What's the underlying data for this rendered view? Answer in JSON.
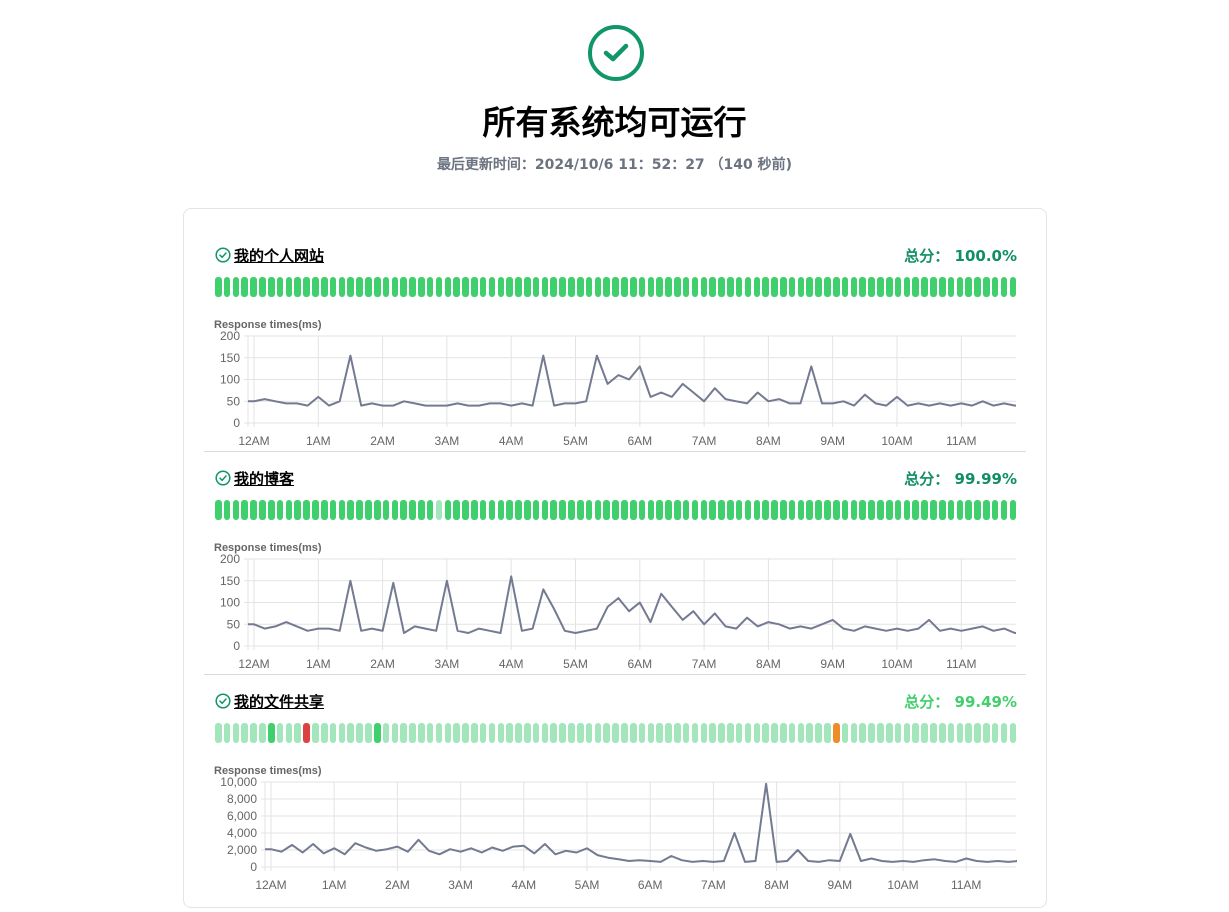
{
  "header": {
    "status_icon": "check-circle-icon",
    "title": "所有系统均可运行",
    "last_updated": "最后更新时间：2024/10/6 11：52：27 （140 秒前)"
  },
  "colors": {
    "accent": "#11956a",
    "up": "#3fcf6d",
    "up_light": "#a3e6bb",
    "down": "#dc4242",
    "degraded": "#ee8b2a",
    "line": "#737a91",
    "score_dark": "#0f8f63",
    "score_light": "#41cf6c"
  },
  "monitors": [
    {
      "name": "我的个人网站",
      "score": "总分：  100.0%",
      "score_tone": "dark",
      "chart_label": "Response times(ms)",
      "statuses": [
        "g",
        "g",
        "g",
        "g",
        "g",
        "g",
        "g",
        "g",
        "g",
        "g",
        "g",
        "g",
        "g",
        "g",
        "g",
        "g",
        "g",
        "g",
        "g",
        "g",
        "g",
        "g",
        "g",
        "g",
        "g",
        "g",
        "g",
        "g",
        "g",
        "g",
        "g",
        "g",
        "g",
        "g",
        "g",
        "g",
        "g",
        "g",
        "g",
        "g",
        "g",
        "g",
        "g",
        "g",
        "g",
        "g",
        "g",
        "g",
        "g",
        "g",
        "g",
        "g",
        "g",
        "g",
        "g",
        "g",
        "g",
        "g",
        "g",
        "g",
        "g",
        "g",
        "g",
        "g",
        "g",
        "g",
        "g",
        "g",
        "g",
        "g",
        "g",
        "g",
        "g",
        "g",
        "g",
        "g",
        "g",
        "g",
        "g",
        "g",
        "g",
        "g",
        "g",
        "g",
        "g",
        "g",
        "g",
        "g",
        "g",
        "g",
        "g"
      ]
    },
    {
      "name": "我的博客",
      "score": "总分：  99.99%",
      "score_tone": "dark",
      "chart_label": "Response times(ms)",
      "statuses": [
        "g",
        "g",
        "g",
        "g",
        "g",
        "g",
        "g",
        "g",
        "g",
        "g",
        "g",
        "g",
        "g",
        "g",
        "g",
        "g",
        "g",
        "g",
        "g",
        "g",
        "g",
        "g",
        "g",
        "g",
        "g",
        "l",
        "g",
        "g",
        "g",
        "g",
        "g",
        "g",
        "g",
        "g",
        "g",
        "g",
        "g",
        "g",
        "g",
        "g",
        "g",
        "g",
        "g",
        "g",
        "g",
        "g",
        "g",
        "g",
        "g",
        "g",
        "g",
        "g",
        "g",
        "g",
        "g",
        "g",
        "g",
        "g",
        "g",
        "g",
        "g",
        "g",
        "g",
        "g",
        "g",
        "g",
        "g",
        "g",
        "g",
        "g",
        "g",
        "g",
        "g",
        "g",
        "g",
        "g",
        "g",
        "g",
        "g",
        "g",
        "g",
        "g",
        "g",
        "g",
        "g",
        "g",
        "g",
        "g",
        "g",
        "g",
        "g"
      ]
    },
    {
      "name": "我的文件共享",
      "score": "总分：  99.49%",
      "score_tone": "light",
      "chart_label": "Response times(ms)",
      "statuses": [
        "l",
        "l",
        "l",
        "l",
        "l",
        "l",
        "g",
        "l",
        "l",
        "l",
        "r",
        "l",
        "l",
        "l",
        "l",
        "l",
        "l",
        "l",
        "g",
        "l",
        "l",
        "l",
        "l",
        "l",
        "l",
        "l",
        "l",
        "l",
        "l",
        "l",
        "l",
        "l",
        "l",
        "l",
        "l",
        "l",
        "l",
        "l",
        "l",
        "l",
        "l",
        "l",
        "l",
        "l",
        "l",
        "l",
        "l",
        "l",
        "l",
        "l",
        "l",
        "l",
        "l",
        "l",
        "l",
        "l",
        "l",
        "l",
        "l",
        "l",
        "l",
        "l",
        "l",
        "l",
        "l",
        "l",
        "l",
        "l",
        "l",
        "l",
        "o",
        "l",
        "l",
        "l",
        "l",
        "l",
        "l",
        "l",
        "l",
        "l",
        "l",
        "l",
        "l",
        "l",
        "l",
        "l",
        "l",
        "l",
        "l",
        "l",
        "l"
      ]
    }
  ],
  "chart_data": [
    {
      "type": "line",
      "ylabel": "Response times(ms)",
      "ylim": [
        0,
        200
      ],
      "yticks": [
        "0",
        "50",
        "100",
        "150",
        "200"
      ],
      "ytick_values": [
        0,
        50,
        100,
        150,
        200
      ],
      "xticks": [
        "12AM",
        "1AM",
        "2AM",
        "3AM",
        "4AM",
        "5AM",
        "6AM",
        "7AM",
        "8AM",
        "9AM",
        "10AM",
        "11AM"
      ],
      "grid": true,
      "x": [
        "0:00",
        "0:10",
        "0:20",
        "0:30",
        "0:40",
        "0:50",
        "1:00",
        "1:10",
        "1:20",
        "1:30",
        "1:40",
        "1:50",
        "2:00",
        "2:10",
        "2:20",
        "2:30",
        "2:40",
        "2:50",
        "3:00",
        "3:10",
        "3:20",
        "3:30",
        "3:40",
        "3:50",
        "4:00",
        "4:10",
        "4:20",
        "4:30",
        "4:40",
        "4:50",
        "5:00",
        "5:10",
        "5:20",
        "5:30",
        "5:40",
        "5:50",
        "6:00",
        "6:10",
        "6:20",
        "6:30",
        "6:40",
        "6:50",
        "7:00",
        "7:10",
        "7:20",
        "7:30",
        "7:40",
        "7:50",
        "8:00",
        "8:10",
        "8:20",
        "8:30",
        "8:40",
        "8:50",
        "9:00",
        "9:10",
        "9:20",
        "9:30",
        "9:40",
        "9:50",
        "10:00",
        "10:10",
        "10:20",
        "10:30",
        "10:40",
        "10:50",
        "11:00",
        "11:10",
        "11:20",
        "11:30",
        "11:40",
        "11:50"
      ],
      "values": [
        50,
        55,
        50,
        45,
        45,
        40,
        60,
        40,
        50,
        155,
        40,
        45,
        40,
        40,
        50,
        45,
        40,
        40,
        40,
        45,
        40,
        40,
        45,
        45,
        40,
        45,
        40,
        155,
        40,
        45,
        45,
        50,
        155,
        90,
        110,
        100,
        130,
        60,
        70,
        60,
        90,
        70,
        50,
        80,
        55,
        50,
        45,
        70,
        50,
        55,
        45,
        45,
        130,
        45,
        45,
        50,
        40,
        65,
        45,
        40,
        60,
        40,
        45,
        40,
        45,
        40,
        45,
        40,
        50,
        40,
        45,
        40
      ]
    },
    {
      "type": "line",
      "ylabel": "Response times(ms)",
      "ylim": [
        0,
        200
      ],
      "yticks": [
        "0",
        "50",
        "100",
        "150",
        "200"
      ],
      "ytick_values": [
        0,
        50,
        100,
        150,
        200
      ],
      "xticks": [
        "12AM",
        "1AM",
        "2AM",
        "3AM",
        "4AM",
        "5AM",
        "6AM",
        "7AM",
        "8AM",
        "9AM",
        "10AM",
        "11AM"
      ],
      "grid": true,
      "x": [
        "0:00",
        "0:10",
        "0:20",
        "0:30",
        "0:40",
        "0:50",
        "1:00",
        "1:10",
        "1:20",
        "1:30",
        "1:40",
        "1:50",
        "2:00",
        "2:10",
        "2:20",
        "2:30",
        "2:40",
        "2:50",
        "3:00",
        "3:10",
        "3:20",
        "3:30",
        "3:40",
        "3:50",
        "4:00",
        "4:10",
        "4:20",
        "4:30",
        "4:40",
        "4:50",
        "5:00",
        "5:10",
        "5:20",
        "5:30",
        "5:40",
        "5:50",
        "6:00",
        "6:10",
        "6:20",
        "6:30",
        "6:40",
        "6:50",
        "7:00",
        "7:10",
        "7:20",
        "7:30",
        "7:40",
        "7:50",
        "8:00",
        "8:10",
        "8:20",
        "8:30",
        "8:40",
        "8:50",
        "9:00",
        "9:10",
        "9:20",
        "9:30",
        "9:40",
        "9:50",
        "10:00",
        "10:10",
        "10:20",
        "10:30",
        "10:40",
        "10:50",
        "11:00",
        "11:10",
        "11:20",
        "11:30",
        "11:40",
        "11:50"
      ],
      "values": [
        50,
        40,
        45,
        55,
        45,
        35,
        40,
        40,
        35,
        150,
        35,
        40,
        35,
        145,
        30,
        45,
        40,
        35,
        150,
        35,
        30,
        40,
        35,
        30,
        160,
        35,
        40,
        130,
        85,
        35,
        30,
        35,
        40,
        90,
        110,
        80,
        100,
        55,
        120,
        90,
        60,
        80,
        50,
        75,
        45,
        40,
        65,
        45,
        55,
        50,
        40,
        45,
        40,
        50,
        60,
        40,
        35,
        45,
        40,
        35,
        40,
        35,
        40,
        60,
        35,
        40,
        35,
        40,
        45,
        35,
        40,
        30
      ]
    },
    {
      "type": "line",
      "ylabel": "Response times(ms)",
      "ylim": [
        0,
        10000
      ],
      "yticks": [
        "0",
        "2,000",
        "4,000",
        "6,000",
        "8,000",
        "10,000"
      ],
      "ytick_values": [
        0,
        2000,
        4000,
        6000,
        8000,
        10000
      ],
      "xticks": [
        "12AM",
        "1AM",
        "2AM",
        "3AM",
        "4AM",
        "5AM",
        "6AM",
        "7AM",
        "8AM",
        "9AM",
        "10AM",
        "11AM"
      ],
      "grid": true,
      "x": [
        "0:00",
        "0:10",
        "0:20",
        "0:30",
        "0:40",
        "0:50",
        "1:00",
        "1:10",
        "1:20",
        "1:30",
        "1:40",
        "1:50",
        "2:00",
        "2:10",
        "2:20",
        "2:30",
        "2:40",
        "2:50",
        "3:00",
        "3:10",
        "3:20",
        "3:30",
        "3:40",
        "3:50",
        "4:00",
        "4:10",
        "4:20",
        "4:30",
        "4:40",
        "4:50",
        "5:00",
        "5:10",
        "5:20",
        "5:30",
        "5:40",
        "5:50",
        "6:00",
        "6:10",
        "6:20",
        "6:30",
        "6:40",
        "6:50",
        "7:00",
        "7:10",
        "7:20",
        "7:30",
        "7:40",
        "7:50",
        "8:00",
        "8:10",
        "8:20",
        "8:30",
        "8:40",
        "8:50",
        "9:00",
        "9:10",
        "9:20",
        "9:30",
        "9:40",
        "9:50",
        "10:00",
        "10:10",
        "10:20",
        "10:30",
        "10:40",
        "10:50",
        "11:00",
        "11:10",
        "11:20",
        "11:30",
        "11:40",
        "11:50"
      ],
      "values": [
        2100,
        1800,
        2600,
        1700,
        2700,
        1600,
        2200,
        1500,
        2800,
        2300,
        1900,
        2100,
        2400,
        1800,
        3200,
        1900,
        1500,
        2100,
        1800,
        2200,
        1700,
        2300,
        1900,
        2400,
        2500,
        1600,
        2700,
        1500,
        1900,
        1700,
        2200,
        1400,
        1100,
        900,
        700,
        800,
        700,
        600,
        1300,
        800,
        600,
        700,
        600,
        700,
        4000,
        600,
        700,
        9800,
        600,
        700,
        2000,
        700,
        600,
        800,
        700,
        3900,
        700,
        1000,
        700,
        600,
        700,
        600,
        800,
        900,
        700,
        600,
        1000,
        700,
        600,
        700,
        600,
        700
      ]
    }
  ]
}
